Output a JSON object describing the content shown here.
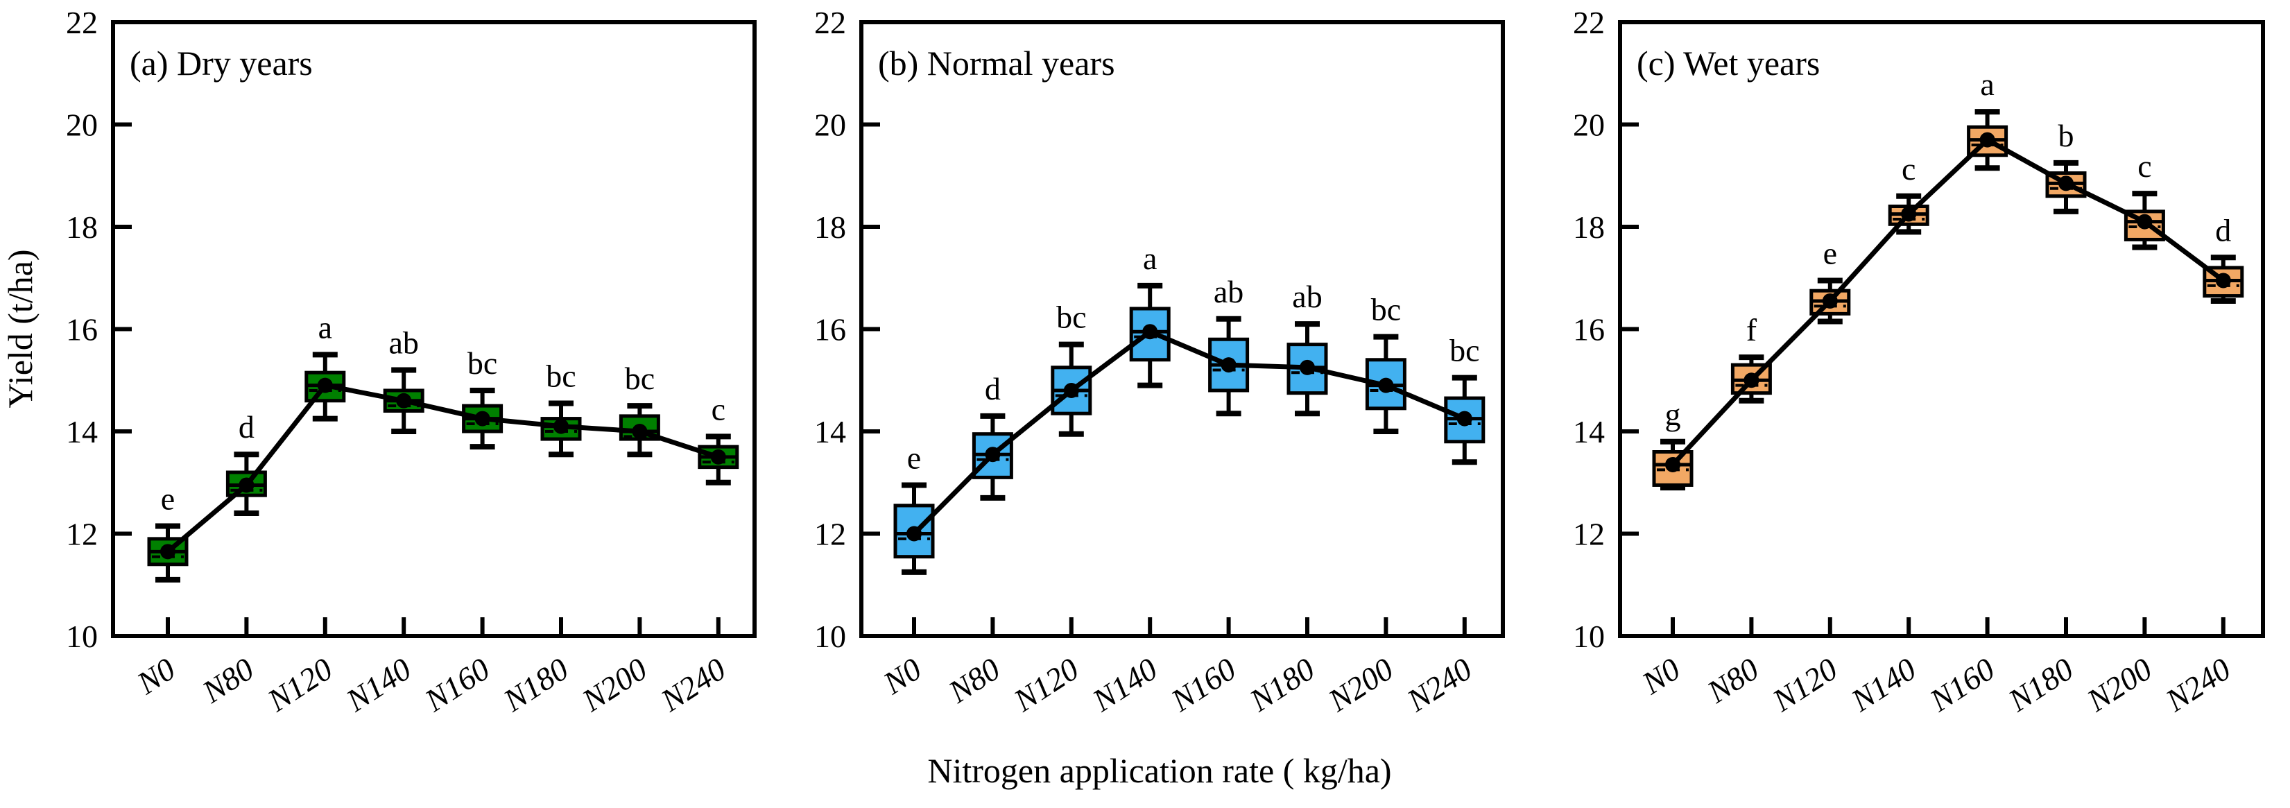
{
  "figure": {
    "y_axis_label": "Yield (t/ha)",
    "x_axis_label": "Nitrogen application rate ( kg/ha)",
    "y_ticks": [
      10,
      12,
      14,
      16,
      18,
      20,
      22
    ],
    "y_range": [
      10,
      22
    ],
    "categories": [
      "N0",
      "N80",
      "N120",
      "N140",
      "N160",
      "N180",
      "N200",
      "N240"
    ]
  },
  "chart_data": [
    {
      "type": "box",
      "title": "(a) Dry years",
      "box_color": "#008000",
      "categories": [
        "N0",
        "N80",
        "N120",
        "N140",
        "N160",
        "N180",
        "N200",
        "N240"
      ],
      "letters": [
        "e",
        "d",
        "a",
        "ab",
        "bc",
        "bc",
        "bc",
        "c"
      ],
      "means": [
        11.65,
        12.95,
        14.9,
        14.6,
        14.25,
        14.1,
        14.0,
        13.5
      ],
      "medians": [
        11.55,
        12.85,
        14.8,
        14.5,
        14.15,
        14.0,
        13.9,
        13.4
      ],
      "q1": [
        11.4,
        12.75,
        14.6,
        14.4,
        14.0,
        13.85,
        13.85,
        13.3
      ],
      "q3": [
        11.9,
        13.2,
        15.15,
        14.8,
        14.5,
        14.25,
        14.3,
        13.7
      ],
      "whisker_low": [
        11.1,
        12.4,
        14.25,
        14.0,
        13.7,
        13.55,
        13.55,
        13.0
      ],
      "whisker_high": [
        12.15,
        13.55,
        15.5,
        15.2,
        14.8,
        14.55,
        14.5,
        13.9
      ],
      "ylim": [
        10,
        22
      ]
    },
    {
      "type": "box",
      "title": "(b) Normal years",
      "box_color": "#42B1F0",
      "categories": [
        "N0",
        "N80",
        "N120",
        "N140",
        "N160",
        "N180",
        "N200",
        "N240"
      ],
      "letters": [
        "e",
        "d",
        "bc",
        "a",
        "ab",
        "ab",
        "bc",
        "bc"
      ],
      "means": [
        12.0,
        13.55,
        14.8,
        15.95,
        15.3,
        15.25,
        14.9,
        14.25
      ],
      "medians": [
        11.9,
        13.45,
        14.7,
        15.85,
        15.2,
        15.15,
        14.8,
        14.15
      ],
      "q1": [
        11.55,
        13.1,
        14.35,
        15.4,
        14.8,
        14.75,
        14.45,
        13.8
      ],
      "q3": [
        12.55,
        13.95,
        15.25,
        16.4,
        15.8,
        15.7,
        15.4,
        14.65
      ],
      "whisker_low": [
        11.25,
        12.7,
        13.95,
        14.9,
        14.35,
        14.35,
        14.0,
        13.4
      ],
      "whisker_high": [
        12.95,
        14.3,
        15.7,
        16.85,
        16.2,
        16.1,
        15.85,
        15.05
      ],
      "ylim": [
        10,
        22
      ]
    },
    {
      "type": "box",
      "title": "(c) Wet years",
      "box_color": "#F2A864",
      "categories": [
        "N0",
        "N80",
        "N120",
        "N140",
        "N160",
        "N180",
        "N200",
        "N240"
      ],
      "letters": [
        "g",
        "f",
        "e",
        "c",
        "a",
        "b",
        "c",
        "d"
      ],
      "means": [
        13.35,
        15.0,
        16.55,
        18.25,
        19.7,
        18.85,
        18.1,
        16.95
      ],
      "medians": [
        13.25,
        14.9,
        16.45,
        18.15,
        19.6,
        18.75,
        18.0,
        16.85
      ],
      "q1": [
        12.95,
        14.75,
        16.3,
        18.05,
        19.4,
        18.6,
        17.75,
        16.65
      ],
      "q3": [
        13.6,
        15.3,
        16.75,
        18.4,
        19.95,
        19.05,
        18.3,
        17.2
      ],
      "whisker_low": [
        12.9,
        14.6,
        16.15,
        17.9,
        19.15,
        18.3,
        17.6,
        16.55
      ],
      "whisker_high": [
        13.8,
        15.45,
        16.95,
        18.6,
        20.25,
        19.25,
        18.65,
        17.4
      ],
      "ylim": [
        10,
        22
      ]
    }
  ]
}
